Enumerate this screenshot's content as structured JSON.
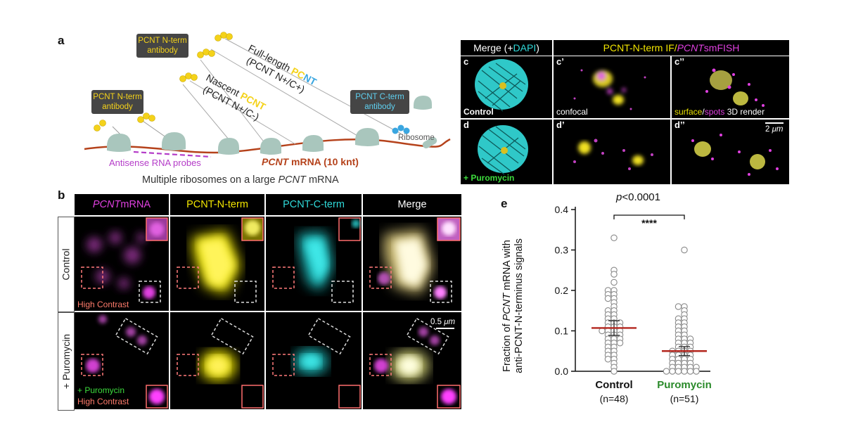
{
  "panel_a": {
    "label": "a",
    "ab_nterm_1": [
      "PCNT N-term",
      "antibody"
    ],
    "ab_nterm_2": [
      "PCNT N-term",
      "antibody"
    ],
    "ab_cterm": [
      "PCNT C-term",
      "antibody"
    ],
    "full_length": {
      "prefix": "Full-length ",
      "letters": [
        "P",
        "C",
        "N",
        "T"
      ],
      "sub": "(PCNT N+/C+)"
    },
    "nascent": {
      "prefix": "Nascent ",
      "word": "PCNT",
      "sub": "(PCNT N+/C-)"
    },
    "ribosome": "Ribosome",
    "probes": "Antisense RNA probes",
    "mrna": {
      "italic": "PCNT",
      "rest": " mRNA (10 knt)"
    },
    "caption": {
      "pre": "Multiple ribosomes on a large ",
      "italic": "PCNT",
      "post": " mRNA"
    },
    "colors": {
      "yellow": "#f4d21a",
      "blue": "#3aa6e0",
      "mrna": "#b5421b",
      "probe": "#b43cc8",
      "ribosome": "#a9c6bd"
    }
  },
  "panel_b": {
    "label": "b",
    "headers": [
      {
        "italic": "PCNT",
        "rest": " mRNA",
        "color": "#e040e0"
      },
      {
        "italic": "",
        "rest": "PCNT-N-term",
        "color": "#f3e600"
      },
      {
        "italic": "",
        "rest": "PCNT-C-term",
        "color": "#2fd9d9"
      },
      {
        "italic": "",
        "rest": "Merge",
        "color": "#ffffff"
      }
    ],
    "rows": [
      "Control",
      "+ Puromycin"
    ],
    "high_contrast": "High Contrast",
    "puromycin": "+ Puromycin",
    "scale": {
      "num": "0.5 ",
      "unit": "μm"
    }
  },
  "panel_c": {
    "merge": {
      "pre": "Merge (+ ",
      "dapi": "DAPI",
      "post": ")"
    },
    "header2": {
      "pre": "PCNT-N-term IF/",
      "italic": "PCNT",
      "post": " smFISH"
    },
    "labels": [
      "c",
      "c’",
      "c’’",
      "d",
      "d’",
      "d’’"
    ],
    "control": "Control",
    "puromycin": "+ Puromycin",
    "confocal": "confocal",
    "render": {
      "surface": "surface",
      "slash": "/",
      "spots": "spots",
      "rest": " 3D render"
    },
    "scale": {
      "num": "2 ",
      "unit": "μm"
    }
  },
  "panel_e": {
    "label": "e",
    "pvalue": {
      "italic": "p",
      "rest": "<0.0001"
    },
    "stars": "****",
    "ylabel_line1": {
      "pre": "Fraction of ",
      "italic": "PCNT",
      "post": " mRNA with"
    },
    "ylabel_line2": "anti-PCNT-N-terminus signals"
  },
  "chart_data": {
    "type": "scatter",
    "categories": [
      "Control",
      "Puromycin"
    ],
    "counts": [
      "(n=48)",
      "(n=51)"
    ],
    "category_colors": [
      "#111111",
      "#2a8a2a"
    ],
    "ylim": [
      0.0,
      0.4
    ],
    "yticks": [
      "0.0",
      "0.1",
      "0.2",
      "0.3",
      "0.4"
    ],
    "means": [
      0.107,
      0.05
    ],
    "sem": [
      0.018,
      0.011
    ],
    "mean_color": "#b3261e",
    "series": [
      {
        "values": [
          0.33,
          0.25,
          0.24,
          0.22,
          0.2,
          0.2,
          0.19,
          0.19,
          0.18,
          0.18,
          0.17,
          0.16,
          0.15,
          0.15,
          0.14,
          0.14,
          0.13,
          0.13,
          0.12,
          0.12,
          0.12,
          0.11,
          0.11,
          0.11,
          0.1,
          0.1,
          0.1,
          0.1,
          0.09,
          0.09,
          0.09,
          0.08,
          0.08,
          0.08,
          0.07,
          0.07,
          0.07,
          0.06,
          0.06,
          0.05,
          0.05,
          0.04,
          0.04,
          0.03,
          0.03,
          0.02,
          0.01,
          0.0
        ]
      },
      {
        "values": [
          0.3,
          0.16,
          0.16,
          0.15,
          0.14,
          0.13,
          0.13,
          0.12,
          0.12,
          0.11,
          0.11,
          0.1,
          0.1,
          0.09,
          0.09,
          0.08,
          0.08,
          0.08,
          0.07,
          0.07,
          0.07,
          0.06,
          0.06,
          0.06,
          0.05,
          0.05,
          0.05,
          0.05,
          0.04,
          0.04,
          0.04,
          0.04,
          0.03,
          0.03,
          0.03,
          0.03,
          0.02,
          0.02,
          0.02,
          0.02,
          0.01,
          0.01,
          0.01,
          0.01,
          0.01,
          0.0,
          0.0,
          0.0,
          0.0,
          0.0,
          0.0
        ]
      }
    ]
  }
}
